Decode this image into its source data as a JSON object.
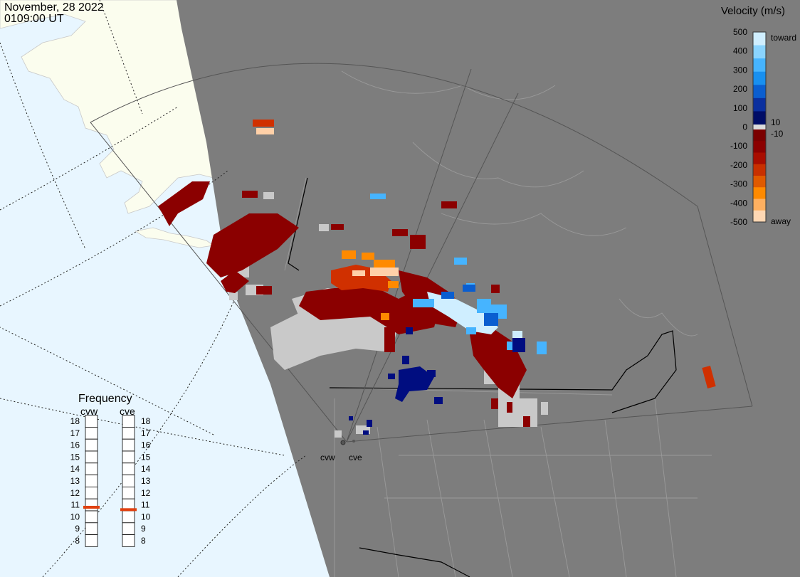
{
  "header": {
    "date": "November, 28 2022",
    "time": "0109:00 UT"
  },
  "legend": {
    "title": "Velocity (m/s)",
    "ticks": [
      "500",
      "400",
      "300",
      "200",
      "100",
      "0",
      "-100",
      "-200",
      "-300",
      "-400",
      "-500"
    ],
    "toward_label": "toward",
    "away_label": "away",
    "plus_label": "10",
    "minus_label": "-10",
    "colors": [
      "#cfeeff",
      "#8ad4ff",
      "#46b4ff",
      "#1890f0",
      "#0a5ed0",
      "#0a2f9e",
      "#000d66",
      "#7a0000",
      "#8b0000",
      "#a80d00",
      "#c83000",
      "#e05a00",
      "#ff8a00",
      "#ffb060",
      "#ffd8b4"
    ]
  },
  "frequency": {
    "title": "Frequency",
    "radars": [
      "cvw",
      "cve"
    ],
    "scale": [
      "18",
      "17",
      "16",
      "15",
      "14",
      "13",
      "12",
      "11",
      "10",
      "9",
      "8"
    ],
    "cvw_value": 10.8,
    "cve_value": 10.6,
    "marker_color": "#e04010"
  },
  "stations": {
    "cvw_label": "cvw",
    "cve_label": "cve"
  },
  "colors": {
    "ocean": "#e8f6ff",
    "land_day": "#fbfdee",
    "night": "#7d7d7d",
    "ground_scatter": "#c9c9c9"
  }
}
